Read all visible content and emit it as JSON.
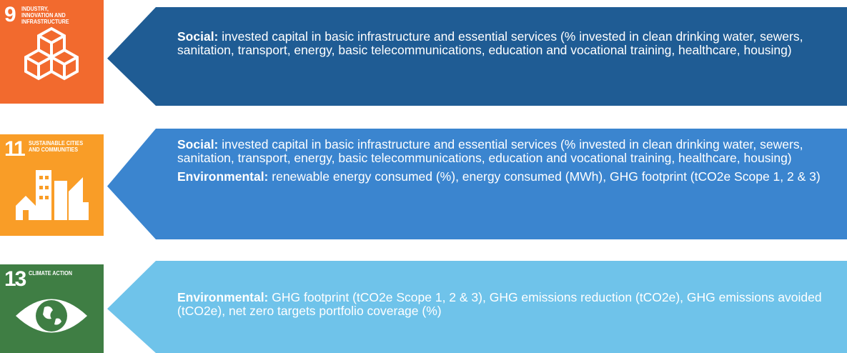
{
  "rows": [
    {
      "goal_number": "9",
      "goal_title": "INDUSTRY, INNOVATION AND INFRASTRUCTURE",
      "paragraphs": [
        {
          "label": "Social:",
          "text": "invested capital in basic infrastructure and essential services (% invested in clean drinking water, sewers, sanitation, transport, energy, basic telecommunications, education and vocational training, healthcare, housing)"
        }
      ]
    },
    {
      "goal_number": "11",
      "goal_title": "SUSTAINABLE CITIES AND COMMUNITIES",
      "paragraphs": [
        {
          "label": "Social:",
          "text": "invested capital in basic infrastructure and essential services (% invested in clean drinking water, sewers, sanitation, transport, energy, basic telecommunications, education and vocational training, healthcare, housing)"
        },
        {
          "label": "Environmental:",
          "text": "renewable energy consumed (%), energy consumed (MWh), GHG footprint (tCO2e Scope 1, 2 & 3)"
        }
      ]
    },
    {
      "goal_number": "13",
      "goal_title": "CLIMATE ACTION",
      "paragraphs": [
        {
          "label": "Environmental:",
          "text": "GHG footprint (tCO2e Scope 1, 2 & 3), GHG emissions reduction (tCO2e), GHG emissions avoided (tCO2e), net zero targets portfolio coverage (%)"
        }
      ]
    }
  ]
}
